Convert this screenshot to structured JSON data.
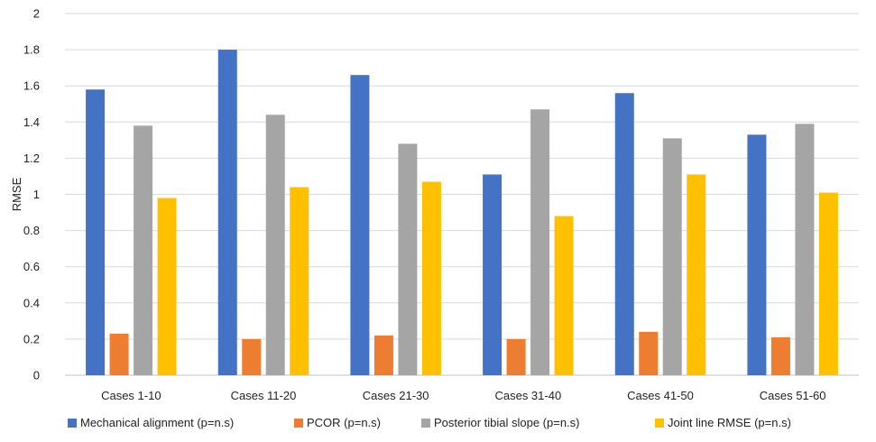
{
  "chart_data": {
    "type": "bar",
    "title": "",
    "xlabel": "",
    "ylabel": "RMSE",
    "ylim": [
      0,
      2
    ],
    "yticks": [
      "0",
      "0.2",
      "0.4",
      "0.6",
      "0.8",
      "1",
      "1.2",
      "1.4",
      "1.6",
      "1.8",
      "2"
    ],
    "grid": true,
    "legend_position": "bottom",
    "categories": [
      "Cases 1-10",
      "Cases 11-20",
      "Cases 21-30",
      "Cases 31-40",
      "Cases 41-50",
      "Cases 51-60"
    ],
    "series": [
      {
        "name": "Mechanical alignment (p=n.s)",
        "color": "#4472C4",
        "values": [
          1.58,
          1.8,
          1.66,
          1.11,
          1.56,
          1.33
        ]
      },
      {
        "name": "PCOR (p=n.s)",
        "color": "#ED7D31",
        "values": [
          0.23,
          0.2,
          0.22,
          0.2,
          0.24,
          0.21
        ]
      },
      {
        "name": "Posterior tibial slope (p=n.s)",
        "color": "#A5A5A5",
        "values": [
          1.38,
          1.44,
          1.28,
          1.47,
          1.31,
          1.39
        ]
      },
      {
        "name": "Joint line RMSE (p=n.s)",
        "color": "#FFC000",
        "values": [
          0.98,
          1.04,
          1.07,
          0.88,
          1.11,
          1.01
        ]
      }
    ]
  }
}
